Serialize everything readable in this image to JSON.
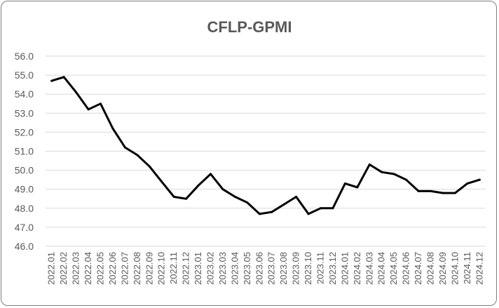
{
  "chart_data": {
    "type": "line",
    "title": "CFLP-GPMI",
    "xlabel": "",
    "ylabel": "",
    "ylim": [
      46.0,
      56.0
    ],
    "yticks": [
      "46.0",
      "47.0",
      "48.0",
      "49.0",
      "50.0",
      "51.0",
      "52.0",
      "53.0",
      "54.0",
      "55.0",
      "56.0"
    ],
    "grid": true,
    "legend": "none",
    "line_color": "#000000",
    "categories": [
      "2022.01",
      "2022.02",
      "2022.03",
      "2022.04",
      "2022.05",
      "2022.06",
      "2022.07",
      "2022.08",
      "2022.09",
      "2022.10",
      "2022.11",
      "2022.12",
      "2023.01",
      "2023.02",
      "2023.03",
      "2023.04",
      "2023.05",
      "2023.06",
      "2023.07",
      "2023.08",
      "2023.09",
      "2023.10",
      "2023.11",
      "2023.12",
      "2024.01",
      "2024.02",
      "2024.03",
      "2024.04",
      "2024.05",
      "2024.06",
      "2024.07",
      "2024.08",
      "2024.09",
      "2024.10",
      "2024.11",
      "2024.12"
    ],
    "series": [
      {
        "values": [
          54.7,
          54.9,
          54.1,
          53.2,
          53.5,
          52.2,
          51.2,
          50.8,
          50.2,
          49.4,
          48.6,
          48.5,
          49.2,
          49.8,
          49.0,
          48.6,
          48.3,
          47.7,
          47.8,
          48.2,
          48.6,
          47.7,
          48.0,
          48.0,
          49.3,
          49.1,
          50.3,
          49.9,
          49.8,
          49.5,
          48.9,
          48.9,
          48.8,
          48.8,
          49.3,
          49.5
        ]
      }
    ]
  }
}
